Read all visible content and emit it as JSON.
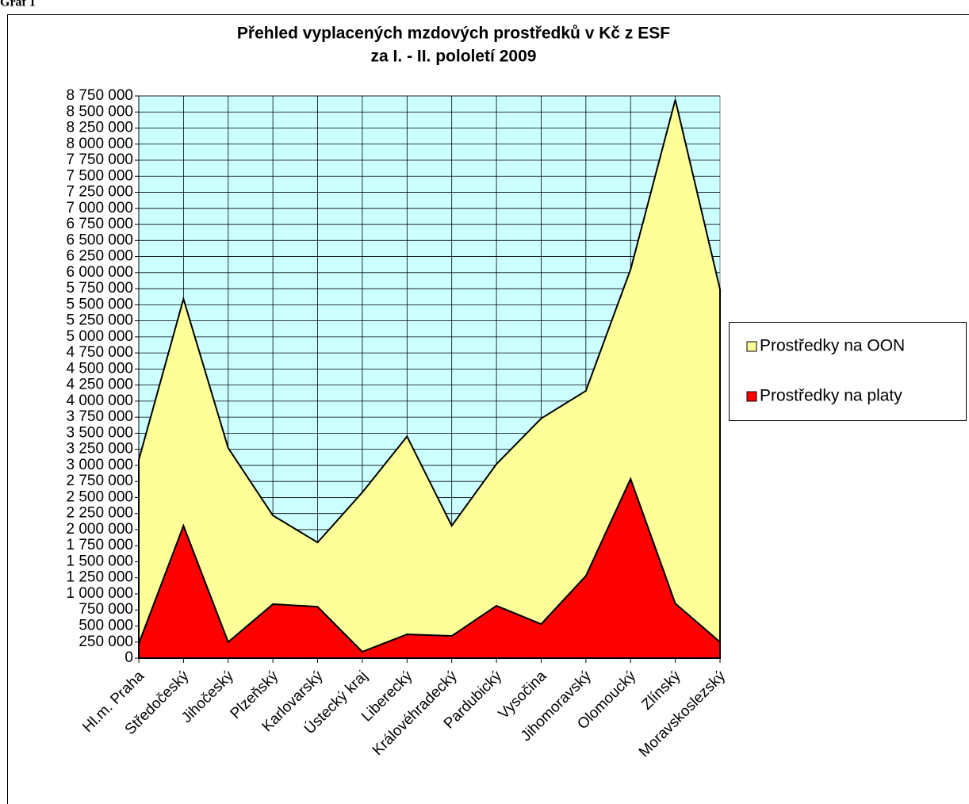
{
  "caption": "Graf 1",
  "chart_data": {
    "type": "stacked_area",
    "title": "Přehled vyplacených mzdových prostředků v Kč z ESF",
    "subtitle": "za I. - II. pololetí 2009",
    "categories": [
      "Hl.m. Praha",
      "Středočeský",
      "Jihočeský",
      "Plzeňský",
      "Karlovarský",
      "Ústecký kraj",
      "Liberecký",
      "Královéhradecký",
      "Pardubický",
      "Vysočina",
      "Jihomoravský",
      "Olomoucký",
      "Zlínský",
      "Moravskoslezský"
    ],
    "series": [
      {
        "name": "Prostředky na OON",
        "color": "#ffff99",
        "values": [
          2860000,
          3530000,
          3020000,
          1380000,
          1000000,
          2480000,
          3080000,
          1715000,
          2205000,
          3200000,
          2880000,
          3260000,
          7840000,
          5490000
        ]
      },
      {
        "name": "Prostředky na platy",
        "color": "#ff0000",
        "values": [
          225000,
          2060000,
          250000,
          840000,
          800000,
          100000,
          370000,
          345000,
          815000,
          530000,
          1280000,
          2790000,
          850000,
          250000
        ]
      }
    ],
    "ylim": [
      0,
      8750000
    ],
    "yticks": [
      0,
      {
        "value": 250000,
        "label": "250 000"
      },
      {
        "value": 500000,
        "label": "500 000"
      },
      {
        "value": 750000,
        "label": "750 000"
      },
      {
        "value": 1000000,
        "label": "1 000 000"
      },
      {
        "value": 1250000,
        "label": "1 250 000"
      },
      {
        "value": 1500000,
        "label": "1 500 000"
      },
      {
        "value": 1750000,
        "label": "1 750 000"
      },
      {
        "value": 2000000,
        "label": "2 000 000"
      },
      {
        "value": 2250000,
        "label": "2 250 000"
      },
      {
        "value": 2500000,
        "label": "2 500 000"
      },
      {
        "value": 2750000,
        "label": "2 750 000"
      },
      {
        "value": 3000000,
        "label": "3 000 000"
      },
      {
        "value": 3250000,
        "label": "3 250 000"
      },
      {
        "value": 3500000,
        "label": "3 500 000"
      },
      {
        "value": 3750000,
        "label": "3 750 000"
      },
      {
        "value": 4000000,
        "label": "4 000 000"
      },
      {
        "value": 4250000,
        "label": "4 250 000"
      },
      {
        "value": 4500000,
        "label": "4 500 000"
      },
      {
        "value": 4750000,
        "label": "4 750 000"
      },
      {
        "value": 5000000,
        "label": "5 000 000"
      },
      {
        "value": 5250000,
        "label": "5 250 000"
      },
      {
        "value": 5500000,
        "label": "5 500 000"
      },
      {
        "value": 5750000,
        "label": "5 750 000"
      },
      {
        "value": 6000000,
        "label": "6 000 000"
      },
      {
        "value": 6250000,
        "label": "6 250 000"
      },
      {
        "value": 6500000,
        "label": "6 500 000"
      },
      {
        "value": 6750000,
        "label": "6 750 000"
      },
      {
        "value": 7000000,
        "label": "7 000 000"
      },
      {
        "value": 7250000,
        "label": "7 250 000"
      },
      {
        "value": 7500000,
        "label": "7 500 000"
      },
      {
        "value": 7750000,
        "label": "7 750 000"
      },
      {
        "value": 8000000,
        "label": "8 000 000"
      },
      {
        "value": 8250000,
        "label": "8 250 000"
      },
      {
        "value": 8500000,
        "label": "8 500 000"
      },
      {
        "value": 8750000,
        "label": "8 750 000"
      }
    ],
    "grid": true,
    "plot_background": "#ccffff",
    "legend": "right"
  }
}
